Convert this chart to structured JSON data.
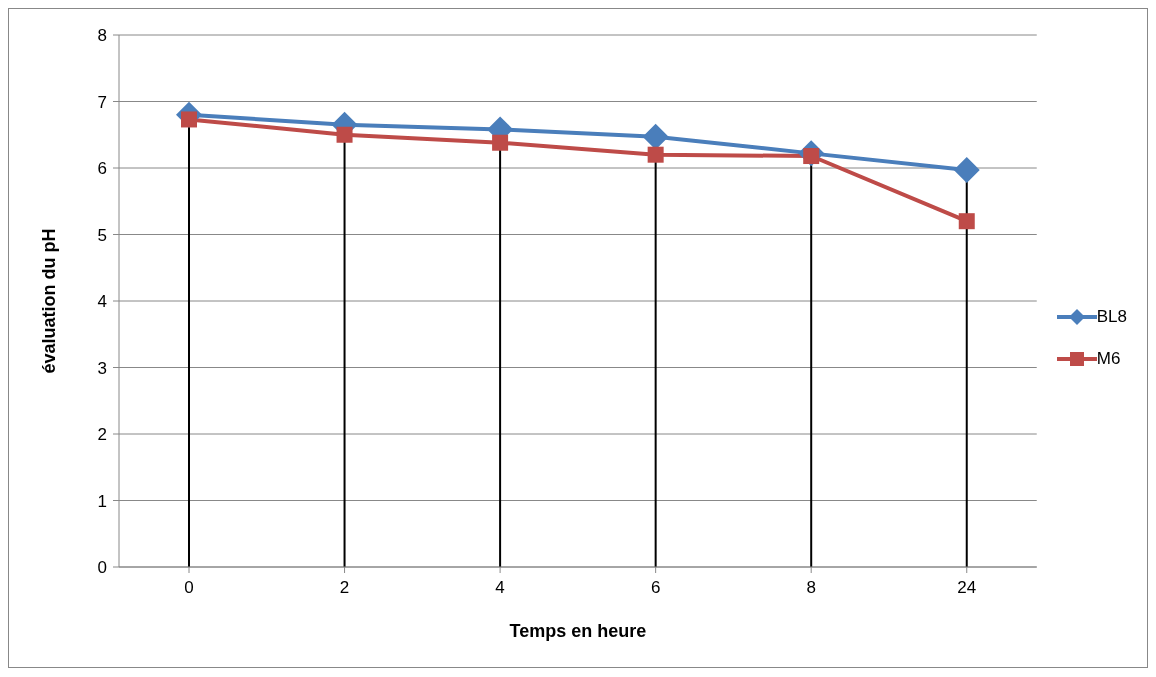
{
  "chart_data": {
    "type": "line",
    "xlabel": "Temps en heure",
    "ylabel": "évaluation  du pH",
    "categories": [
      "0",
      "2",
      "4",
      "6",
      "8",
      "24"
    ],
    "series": [
      {
        "name": "BL8",
        "color": "#4a7ebb",
        "marker": "diamond",
        "values": [
          6.8,
          6.65,
          6.58,
          6.47,
          6.22,
          5.97
        ]
      },
      {
        "name": "M6",
        "color": "#be4b48",
        "marker": "square",
        "values": [
          6.73,
          6.5,
          6.38,
          6.2,
          6.18,
          5.2
        ]
      }
    ],
    "ylim": [
      0,
      8
    ],
    "yticks": [
      0,
      1,
      2,
      3,
      4,
      5,
      6,
      7,
      8
    ],
    "grid": "y",
    "legend": "right",
    "ref_lines": [
      {
        "axis": "x",
        "value": "0",
        "color": "#000000"
      },
      {
        "axis": "x",
        "value": "2",
        "color": "#000000"
      },
      {
        "axis": "x",
        "value": "4",
        "color": "#000000"
      },
      {
        "axis": "x",
        "value": "6",
        "color": "#000000"
      },
      {
        "axis": "x",
        "value": "8",
        "color": "#000000"
      },
      {
        "axis": "x",
        "value": "24",
        "color": "#000000"
      }
    ]
  }
}
